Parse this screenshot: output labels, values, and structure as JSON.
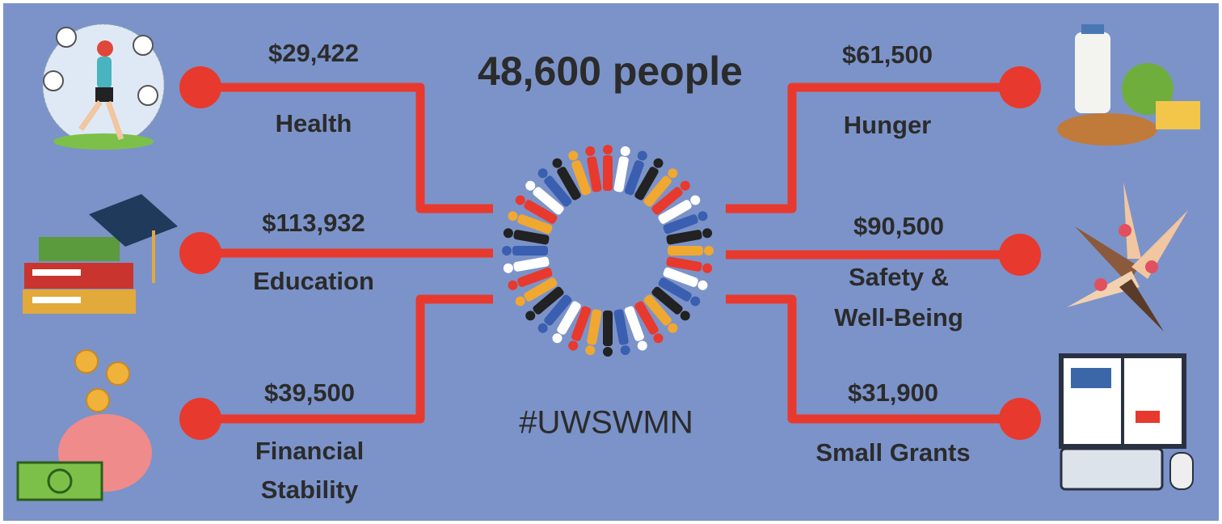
{
  "header": {
    "title": "48,600 people",
    "hashtag": "#UWSWMN"
  },
  "items": [
    {
      "amount": "$29,422",
      "label": [
        "Health"
      ]
    },
    {
      "amount": "$113,932",
      "label": [
        "Education"
      ]
    },
    {
      "amount": "$39,500",
      "label": [
        "Financial",
        "Stability"
      ]
    },
    {
      "amount": "$61,500",
      "label": [
        "Hunger"
      ]
    },
    {
      "amount": "$90,500",
      "label": [
        "Safety &",
        "Well-Being"
      ]
    },
    {
      "amount": "$31,900",
      "label": [
        "Small Grants"
      ]
    }
  ]
}
